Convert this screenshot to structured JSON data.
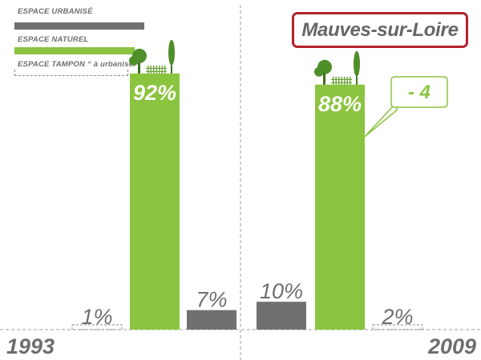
{
  "title": "Mauves-sur-Loire",
  "colors": {
    "urbanise": "#707070",
    "naturel": "#8bc43f",
    "tampon_border": "#8a8a8a",
    "title_border": "#b5202a",
    "text": "#6d6e70",
    "white": "#ffffff"
  },
  "legend": [
    {
      "label": "ESPACE URBANISÉ",
      "color": "#707070",
      "style": "solid"
    },
    {
      "label": "ESPACE NATUREL",
      "color": "#8bc43f",
      "style": "solid"
    },
    {
      "label": "ESPACE TAMPON “ à urbaniser ”",
      "color": "#8a8a8a",
      "style": "dashed"
    }
  ],
  "chart_data": {
    "type": "bar",
    "categories": [
      "1993",
      "2009"
    ],
    "series": [
      {
        "name": "ESPACE TAMPON “ à urbaniser ”",
        "values": [
          1,
          2
        ],
        "labels": [
          "1%",
          "2%"
        ]
      },
      {
        "name": "ESPACE NATUREL",
        "values": [
          92,
          88
        ],
        "labels": [
          "92%",
          "88%"
        ]
      },
      {
        "name": "ESPACE URBANISÉ",
        "values": [
          7,
          10
        ],
        "labels": [
          "7%",
          "10%"
        ]
      }
    ],
    "annotation": "- 4",
    "legend_position": "top-left",
    "grid": false
  }
}
